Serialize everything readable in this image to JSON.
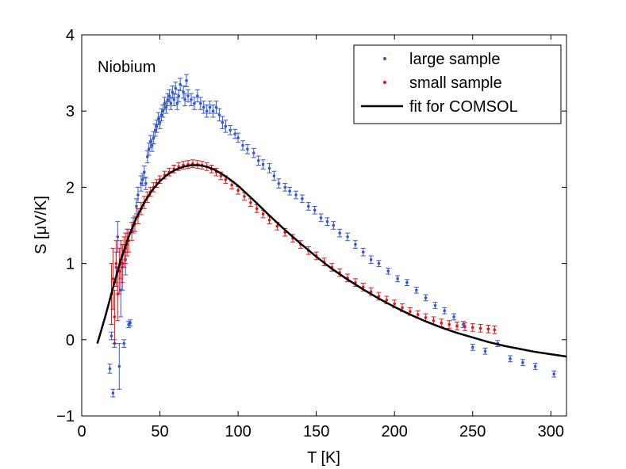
{
  "chart_data": {
    "type": "scatter",
    "title": "",
    "annotation": "Niobium",
    "xlabel": "T [K]",
    "ylabel": "S [μV/K]",
    "xlim": [
      0,
      310
    ],
    "ylim": [
      -1,
      4
    ],
    "xticks": [
      0,
      50,
      100,
      150,
      200,
      250,
      300
    ],
    "yticks": [
      -1,
      0,
      1,
      2,
      3,
      4
    ],
    "xtick_labels": [
      "0",
      "50",
      "100",
      "150",
      "200",
      "250",
      "300"
    ],
    "ytick_labels": [
      "−1",
      "0",
      "1",
      "2",
      "3",
      "4"
    ],
    "grid": false,
    "legend_position": "top-right",
    "series": [
      {
        "name": "large sample",
        "color": "#3355dd",
        "marker": "point-with-errorbars",
        "points": [
          {
            "x": 18,
            "y": -0.38,
            "e": 0.06
          },
          {
            "x": 19,
            "y": 0.05,
            "e": 0.05
          },
          {
            "x": 20,
            "y": -0.7,
            "e": 0.05
          },
          {
            "x": 21,
            "y": -0.05,
            "e": 0.05
          },
          {
            "x": 22,
            "y": 0.95,
            "e": 0.2
          },
          {
            "x": 23,
            "y": 1.35,
            "e": 0.2
          },
          {
            "x": 24,
            "y": -0.35,
            "e": 0.3
          },
          {
            "x": 25,
            "y": 0.65,
            "e": 0.35
          },
          {
            "x": 26,
            "y": 0.95,
            "e": 0.3
          },
          {
            "x": 27,
            "y": -0.05,
            "e": 0.05
          },
          {
            "x": 28,
            "y": 1.05,
            "e": 0.2
          },
          {
            "x": 29,
            "y": 1.3,
            "e": 0.15
          },
          {
            "x": 30,
            "y": 0.2,
            "e": 0.04
          },
          {
            "x": 31,
            "y": 0.22,
            "e": 0.04
          },
          {
            "x": 33,
            "y": 1.5,
            "e": 0.1
          },
          {
            "x": 35,
            "y": 1.75,
            "e": 0.1
          },
          {
            "x": 36,
            "y": 1.9,
            "e": 0.1
          },
          {
            "x": 38,
            "y": 2.05,
            "e": 0.1
          },
          {
            "x": 39,
            "y": 2.1,
            "e": 0.08
          },
          {
            "x": 40,
            "y": 2.2,
            "e": 0.08
          },
          {
            "x": 41,
            "y": 2.05,
            "e": 0.08
          },
          {
            "x": 42,
            "y": 2.4,
            "e": 0.08
          },
          {
            "x": 43,
            "y": 2.5,
            "e": 0.08
          },
          {
            "x": 44,
            "y": 2.6,
            "e": 0.08
          },
          {
            "x": 45,
            "y": 2.55,
            "e": 0.08
          },
          {
            "x": 46,
            "y": 2.65,
            "e": 0.08
          },
          {
            "x": 47,
            "y": 2.75,
            "e": 0.08
          },
          {
            "x": 48,
            "y": 2.8,
            "e": 0.08
          },
          {
            "x": 49,
            "y": 2.9,
            "e": 0.08
          },
          {
            "x": 50,
            "y": 2.85,
            "e": 0.08
          },
          {
            "x": 51,
            "y": 2.95,
            "e": 0.08
          },
          {
            "x": 52,
            "y": 3.0,
            "e": 0.08
          },
          {
            "x": 53,
            "y": 3.1,
            "e": 0.08
          },
          {
            "x": 54,
            "y": 3.05,
            "e": 0.08
          },
          {
            "x": 55,
            "y": 3.15,
            "e": 0.08
          },
          {
            "x": 56,
            "y": 3.2,
            "e": 0.08
          },
          {
            "x": 57,
            "y": 3.1,
            "e": 0.08
          },
          {
            "x": 58,
            "y": 3.25,
            "e": 0.08
          },
          {
            "x": 59,
            "y": 3.15,
            "e": 0.08
          },
          {
            "x": 60,
            "y": 3.3,
            "e": 0.08
          },
          {
            "x": 61,
            "y": 3.1,
            "e": 0.08
          },
          {
            "x": 62,
            "y": 3.2,
            "e": 0.08
          },
          {
            "x": 63,
            "y": 3.35,
            "e": 0.08
          },
          {
            "x": 65,
            "y": 3.25,
            "e": 0.08
          },
          {
            "x": 66,
            "y": 3.15,
            "e": 0.08
          },
          {
            "x": 67,
            "y": 3.4,
            "e": 0.08
          },
          {
            "x": 68,
            "y": 3.2,
            "e": 0.08
          },
          {
            "x": 70,
            "y": 3.15,
            "e": 0.08
          },
          {
            "x": 72,
            "y": 3.1,
            "e": 0.08
          },
          {
            "x": 74,
            "y": 3.2,
            "e": 0.08
          },
          {
            "x": 76,
            "y": 3.1,
            "e": 0.08
          },
          {
            "x": 78,
            "y": 3.05,
            "e": 0.08
          },
          {
            "x": 80,
            "y": 3.0,
            "e": 0.08
          },
          {
            "x": 82,
            "y": 3.05,
            "e": 0.08
          },
          {
            "x": 84,
            "y": 3.0,
            "e": 0.08
          },
          {
            "x": 86,
            "y": 3.05,
            "e": 0.08
          },
          {
            "x": 88,
            "y": 2.95,
            "e": 0.08
          },
          {
            "x": 90,
            "y": 2.85,
            "e": 0.08
          },
          {
            "x": 92,
            "y": 2.8,
            "e": 0.08
          },
          {
            "x": 95,
            "y": 2.75,
            "e": 0.06
          },
          {
            "x": 98,
            "y": 2.7,
            "e": 0.06
          },
          {
            "x": 100,
            "y": 2.65,
            "e": 0.06
          },
          {
            "x": 103,
            "y": 2.55,
            "e": 0.06
          },
          {
            "x": 106,
            "y": 2.5,
            "e": 0.06
          },
          {
            "x": 110,
            "y": 2.45,
            "e": 0.06
          },
          {
            "x": 113,
            "y": 2.35,
            "e": 0.06
          },
          {
            "x": 116,
            "y": 2.3,
            "e": 0.06
          },
          {
            "x": 120,
            "y": 2.25,
            "e": 0.06
          },
          {
            "x": 123,
            "y": 2.15,
            "e": 0.06
          },
          {
            "x": 126,
            "y": 2.05,
            "e": 0.06
          },
          {
            "x": 130,
            "y": 2.0,
            "e": 0.05
          },
          {
            "x": 133,
            "y": 1.95,
            "e": 0.05
          },
          {
            "x": 137,
            "y": 1.9,
            "e": 0.05
          },
          {
            "x": 141,
            "y": 1.85,
            "e": 0.05
          },
          {
            "x": 145,
            "y": 1.75,
            "e": 0.05
          },
          {
            "x": 149,
            "y": 1.7,
            "e": 0.05
          },
          {
            "x": 153,
            "y": 1.6,
            "e": 0.05
          },
          {
            "x": 157,
            "y": 1.55,
            "e": 0.05
          },
          {
            "x": 161,
            "y": 1.5,
            "e": 0.05
          },
          {
            "x": 165,
            "y": 1.4,
            "e": 0.05
          },
          {
            "x": 170,
            "y": 1.35,
            "e": 0.05
          },
          {
            "x": 175,
            "y": 1.25,
            "e": 0.05
          },
          {
            "x": 180,
            "y": 1.15,
            "e": 0.05
          },
          {
            "x": 185,
            "y": 1.05,
            "e": 0.05
          },
          {
            "x": 190,
            "y": 1.0,
            "e": 0.04
          },
          {
            "x": 196,
            "y": 0.9,
            "e": 0.04
          },
          {
            "x": 202,
            "y": 0.8,
            "e": 0.04
          },
          {
            "x": 208,
            "y": 0.75,
            "e": 0.04
          },
          {
            "x": 214,
            "y": 0.65,
            "e": 0.04
          },
          {
            "x": 220,
            "y": 0.55,
            "e": 0.04
          },
          {
            "x": 226,
            "y": 0.45,
            "e": 0.04
          },
          {
            "x": 232,
            "y": 0.38,
            "e": 0.04
          },
          {
            "x": 238,
            "y": 0.3,
            "e": 0.04
          },
          {
            "x": 244,
            "y": 0.2,
            "e": 0.04
          },
          {
            "x": 250,
            "y": -0.1,
            "e": 0.04
          },
          {
            "x": 258,
            "y": -0.15,
            "e": 0.04
          },
          {
            "x": 266,
            "y": -0.05,
            "e": 0.04
          },
          {
            "x": 274,
            "y": -0.25,
            "e": 0.04
          },
          {
            "x": 282,
            "y": -0.3,
            "e": 0.04
          },
          {
            "x": 290,
            "y": -0.35,
            "e": 0.04
          },
          {
            "x": 302,
            "y": -0.45,
            "e": 0.04
          }
        ]
      },
      {
        "name": "small sample",
        "color": "#ee1111",
        "marker": "point-with-errorbars",
        "points": [
          {
            "x": 19,
            "y": 0.6,
            "e": 0.4
          },
          {
            "x": 20,
            "y": 0.8,
            "e": 0.4
          },
          {
            "x": 21,
            "y": 0.3,
            "e": 0.35
          },
          {
            "x": 22,
            "y": 1.0,
            "e": 0.3
          },
          {
            "x": 23,
            "y": 0.6,
            "e": 0.35
          },
          {
            "x": 24,
            "y": 0.9,
            "e": 0.3
          },
          {
            "x": 25,
            "y": 1.05,
            "e": 0.25
          },
          {
            "x": 26,
            "y": 1.0,
            "e": 0.25
          },
          {
            "x": 27,
            "y": 1.15,
            "e": 0.2
          },
          {
            "x": 28,
            "y": 1.2,
            "e": 0.2
          },
          {
            "x": 29,
            "y": 1.25,
            "e": 0.15
          },
          {
            "x": 30,
            "y": 1.3,
            "e": 0.15
          },
          {
            "x": 32,
            "y": 1.42,
            "e": 0.12
          },
          {
            "x": 34,
            "y": 1.52,
            "e": 0.1
          },
          {
            "x": 36,
            "y": 1.62,
            "e": 0.1
          },
          {
            "x": 38,
            "y": 1.72,
            "e": 0.08
          },
          {
            "x": 40,
            "y": 1.8,
            "e": 0.08
          },
          {
            "x": 42,
            "y": 1.87,
            "e": 0.07
          },
          {
            "x": 44,
            "y": 1.94,
            "e": 0.06
          },
          {
            "x": 46,
            "y": 2.0,
            "e": 0.06
          },
          {
            "x": 48,
            "y": 2.05,
            "e": 0.05
          },
          {
            "x": 50,
            "y": 2.1,
            "e": 0.05
          },
          {
            "x": 53,
            "y": 2.16,
            "e": 0.05
          },
          {
            "x": 56,
            "y": 2.2,
            "e": 0.05
          },
          {
            "x": 59,
            "y": 2.24,
            "e": 0.05
          },
          {
            "x": 62,
            "y": 2.27,
            "e": 0.05
          },
          {
            "x": 65,
            "y": 2.29,
            "e": 0.05
          },
          {
            "x": 68,
            "y": 2.3,
            "e": 0.05
          },
          {
            "x": 71,
            "y": 2.31,
            "e": 0.05
          },
          {
            "x": 74,
            "y": 2.3,
            "e": 0.05
          },
          {
            "x": 77,
            "y": 2.29,
            "e": 0.05
          },
          {
            "x": 80,
            "y": 2.27,
            "e": 0.05
          },
          {
            "x": 83,
            "y": 2.24,
            "e": 0.05
          },
          {
            "x": 86,
            "y": 2.2,
            "e": 0.05
          },
          {
            "x": 89,
            "y": 2.15,
            "e": 0.05
          },
          {
            "x": 92,
            "y": 2.1,
            "e": 0.05
          },
          {
            "x": 96,
            "y": 2.03,
            "e": 0.05
          },
          {
            "x": 100,
            "y": 1.96,
            "e": 0.05
          },
          {
            "x": 104,
            "y": 1.88,
            "e": 0.05
          },
          {
            "x": 108,
            "y": 1.8,
            "e": 0.05
          },
          {
            "x": 112,
            "y": 1.72,
            "e": 0.05
          },
          {
            "x": 116,
            "y": 1.65,
            "e": 0.05
          },
          {
            "x": 120,
            "y": 1.57,
            "e": 0.05
          },
          {
            "x": 125,
            "y": 1.49,
            "e": 0.05
          },
          {
            "x": 130,
            "y": 1.41,
            "e": 0.05
          },
          {
            "x": 135,
            "y": 1.33,
            "e": 0.05
          },
          {
            "x": 140,
            "y": 1.25,
            "e": 0.05
          },
          {
            "x": 145,
            "y": 1.17,
            "e": 0.05
          },
          {
            "x": 150,
            "y": 1.1,
            "e": 0.05
          },
          {
            "x": 155,
            "y": 1.02,
            "e": 0.05
          },
          {
            "x": 160,
            "y": 0.95,
            "e": 0.05
          },
          {
            "x": 165,
            "y": 0.88,
            "e": 0.05
          },
          {
            "x": 170,
            "y": 0.81,
            "e": 0.05
          },
          {
            "x": 175,
            "y": 0.75,
            "e": 0.05
          },
          {
            "x": 180,
            "y": 0.69,
            "e": 0.05
          },
          {
            "x": 185,
            "y": 0.63,
            "e": 0.05
          },
          {
            "x": 190,
            "y": 0.57,
            "e": 0.05
          },
          {
            "x": 195,
            "y": 0.52,
            "e": 0.05
          },
          {
            "x": 200,
            "y": 0.47,
            "e": 0.05
          },
          {
            "x": 205,
            "y": 0.42,
            "e": 0.05
          },
          {
            "x": 210,
            "y": 0.37,
            "e": 0.05
          },
          {
            "x": 215,
            "y": 0.33,
            "e": 0.05
          },
          {
            "x": 220,
            "y": 0.29,
            "e": 0.05
          },
          {
            "x": 225,
            "y": 0.25,
            "e": 0.05
          },
          {
            "x": 230,
            "y": 0.22,
            "e": 0.05
          },
          {
            "x": 235,
            "y": 0.2,
            "e": 0.05
          },
          {
            "x": 240,
            "y": 0.18,
            "e": 0.05
          },
          {
            "x": 245,
            "y": 0.17,
            "e": 0.05
          },
          {
            "x": 250,
            "y": 0.16,
            "e": 0.05
          },
          {
            "x": 255,
            "y": 0.15,
            "e": 0.05
          },
          {
            "x": 260,
            "y": 0.14,
            "e": 0.05
          },
          {
            "x": 264,
            "y": 0.13,
            "e": 0.05
          }
        ]
      },
      {
        "name": "fit for COMSOL",
        "color": "#000000",
        "marker": "line",
        "x": [
          10,
          15,
          20,
          25,
          30,
          35,
          40,
          45,
          50,
          55,
          60,
          65,
          70,
          75,
          80,
          85,
          90,
          95,
          100,
          110,
          120,
          130,
          140,
          150,
          160,
          170,
          180,
          190,
          200,
          210,
          220,
          230,
          240,
          250,
          260,
          270,
          280,
          290,
          300,
          310
        ],
        "y": [
          -0.05,
          0.3,
          0.68,
          1.05,
          1.35,
          1.6,
          1.8,
          1.96,
          2.08,
          2.17,
          2.23,
          2.27,
          2.29,
          2.29,
          2.27,
          2.23,
          2.17,
          2.1,
          2.02,
          1.83,
          1.63,
          1.44,
          1.26,
          1.09,
          0.93,
          0.79,
          0.66,
          0.54,
          0.43,
          0.33,
          0.24,
          0.16,
          0.09,
          0.03,
          -0.03,
          -0.08,
          -0.12,
          -0.16,
          -0.19,
          -0.22
        ]
      }
    ]
  }
}
